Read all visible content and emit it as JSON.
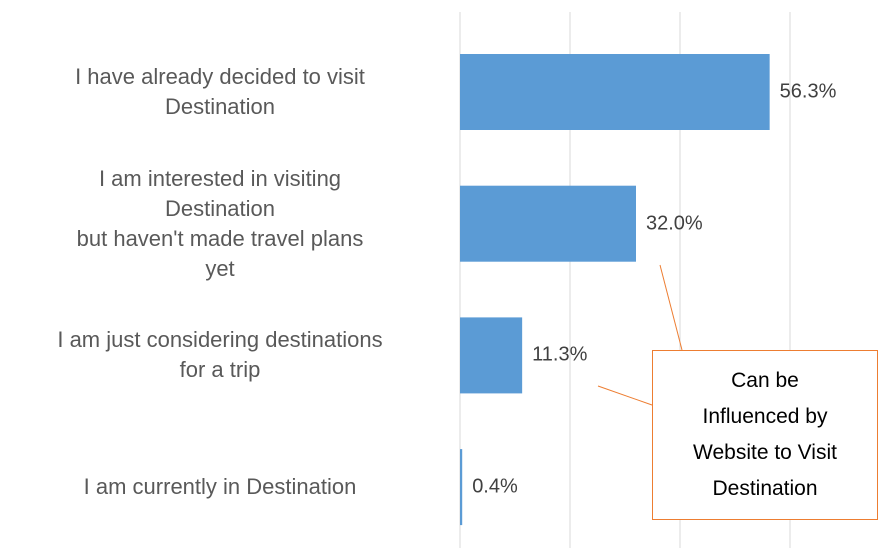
{
  "chart_data": {
    "type": "bar",
    "orientation": "horizontal",
    "categories": [
      "I have already decided to visit\nDestination",
      "I am interested in visiting\nDestination\nbut haven't made travel plans\nyet",
      "I am just considering destinations\nfor a trip",
      "I am currently in Destination"
    ],
    "values": [
      56.3,
      32.0,
      11.3,
      0.4
    ],
    "value_labels": [
      "56.3%",
      "32.0%",
      "11.3%",
      "0.4%"
    ],
    "color": "#5b9bd5",
    "xlim": [
      0,
      60
    ],
    "xticks": [
      0,
      20,
      40,
      60
    ],
    "grid": true,
    "annotation": "Can be\nInfluenced by\nWebsite to Visit\nDestination"
  }
}
